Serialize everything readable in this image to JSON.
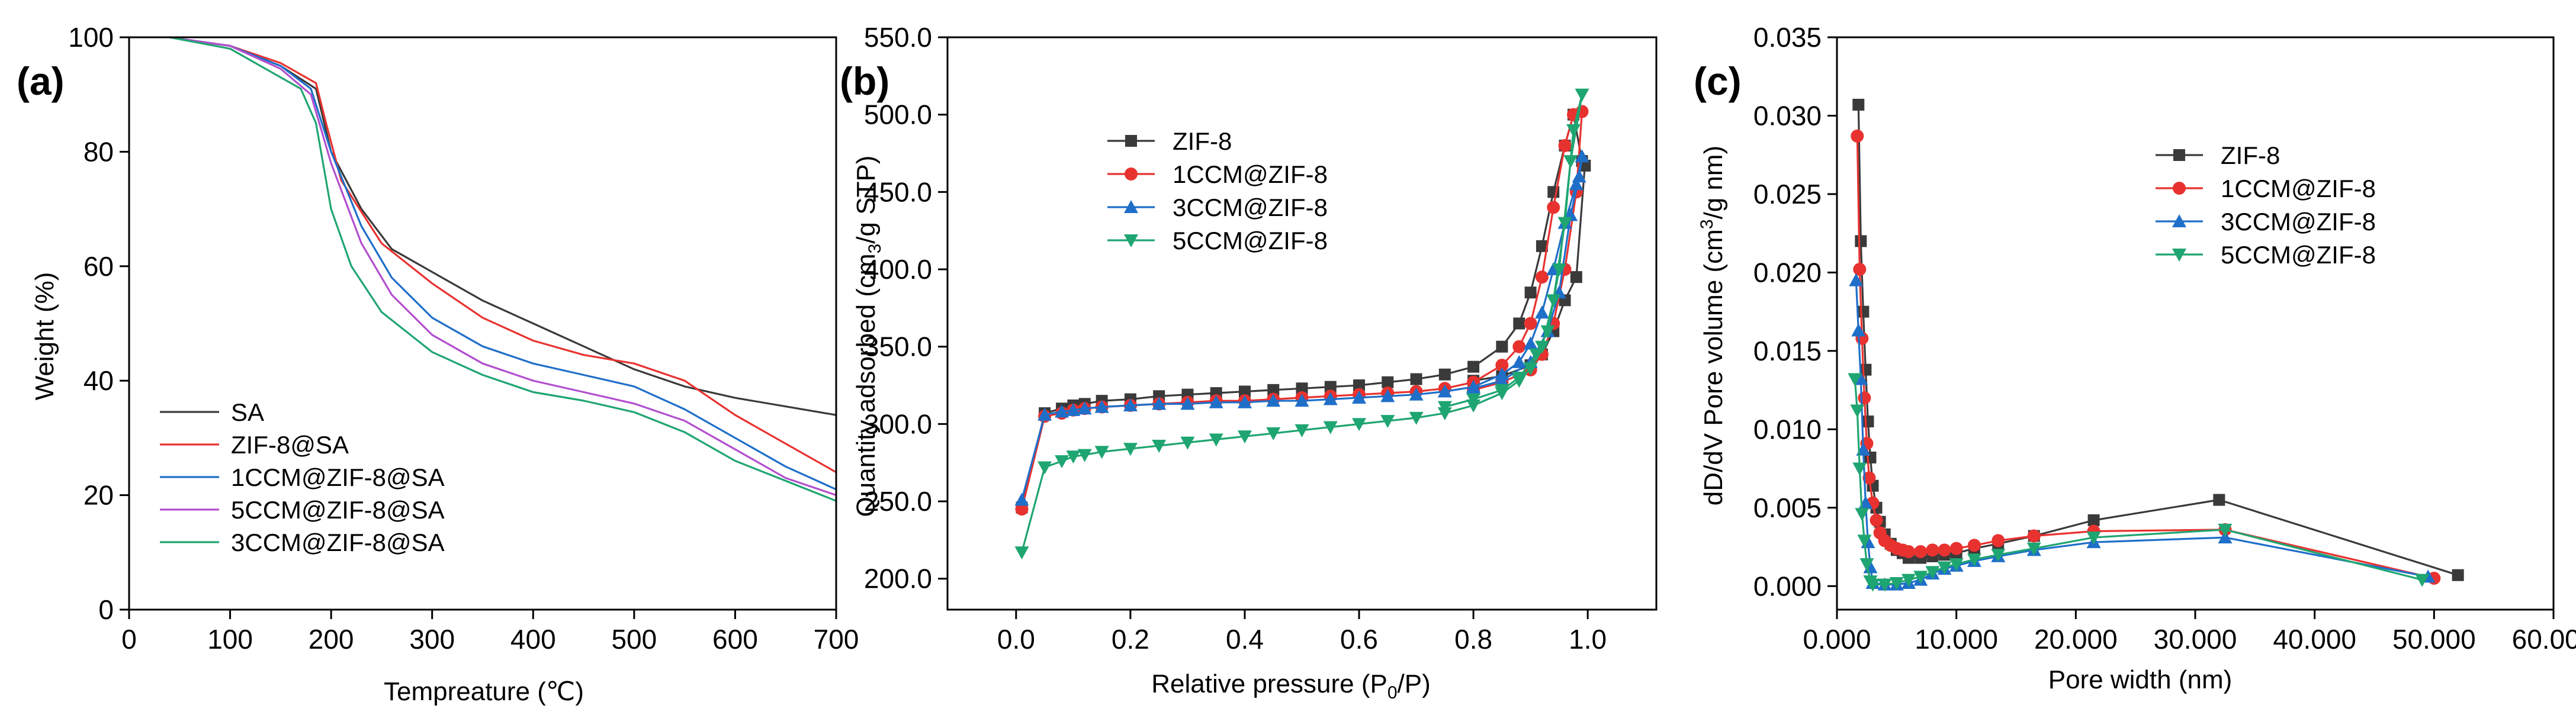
{
  "chart_data": [
    {
      "type": "line",
      "panel_label": "(a)",
      "title": "",
      "xlabel": "Tempreature (℃)",
      "ylabel": "Weight (%)",
      "xlim": [
        0,
        700
      ],
      "ylim": [
        0,
        100
      ],
      "xticks": [
        0,
        100,
        200,
        300,
        400,
        500,
        600,
        700
      ],
      "yticks": [
        0,
        20,
        40,
        60,
        80,
        100
      ],
      "legend_position": "bottom-left",
      "markers": false,
      "series": [
        {
          "name": "SA",
          "color": "#3a3a3a",
          "x": [
            40,
            100,
            150,
            185,
            200,
            230,
            260,
            300,
            350,
            400,
            450,
            500,
            550,
            600,
            650,
            700
          ],
          "y": [
            100,
            98.5,
            95,
            91,
            80,
            70,
            63,
            59,
            54,
            50,
            46,
            42,
            39,
            37,
            35.5,
            34
          ]
        },
        {
          "name": "ZIF-8@SA",
          "color": "#e8322f",
          "x": [
            40,
            100,
            150,
            185,
            195,
            210,
            250,
            300,
            350,
            400,
            450,
            500,
            550,
            600,
            650,
            700
          ],
          "y": [
            100,
            98.5,
            95.5,
            92,
            85,
            75,
            64,
            57,
            51,
            47,
            44.5,
            43,
            40,
            34,
            29,
            24
          ]
        },
        {
          "name": "1CCM@ZIF-8@SA",
          "color": "#1f6fc9",
          "x": [
            40,
            100,
            150,
            180,
            200,
            230,
            260,
            300,
            350,
            400,
            450,
            500,
            550,
            600,
            650,
            700
          ],
          "y": [
            100,
            98.5,
            95,
            91,
            80,
            67,
            58,
            51,
            46,
            43,
            41,
            39,
            35,
            30,
            25,
            21
          ]
        },
        {
          "name": "5CCM@ZIF-8@SA",
          "color": "#b24fcf",
          "x": [
            40,
            100,
            150,
            180,
            200,
            230,
            260,
            300,
            350,
            400,
            450,
            500,
            550,
            600,
            650,
            700
          ],
          "y": [
            100,
            98.5,
            94.5,
            90,
            78,
            64,
            55,
            48,
            43,
            40,
            38,
            36,
            33,
            28,
            23,
            20
          ]
        },
        {
          "name": "3CCM@ZIF-8@SA",
          "color": "#1fa571",
          "x": [
            40,
            100,
            140,
            170,
            185,
            200,
            220,
            250,
            300,
            350,
            400,
            450,
            500,
            550,
            600,
            650,
            700
          ],
          "y": [
            100,
            98,
            94,
            91,
            85,
            70,
            60,
            52,
            45,
            41,
            38,
            36.5,
            34.5,
            31,
            26,
            22.5,
            19
          ]
        }
      ]
    },
    {
      "type": "line",
      "panel_label": "(b)",
      "title": "",
      "xlabel": "Relative pressure (P0/P)",
      "ylabel": "Quantity adsorbed (cm3/g STP)",
      "xlim": [
        -0.12,
        1.12
      ],
      "ylim": [
        180,
        550
      ],
      "xticks": [
        0.0,
        0.2,
        0.4,
        0.6,
        0.8,
        1.0
      ],
      "yticks": [
        200,
        250,
        300,
        350,
        400,
        450,
        500,
        550
      ],
      "legend_position": "top-left",
      "markers": true,
      "series": [
        {
          "name": "ZIF-8",
          "color": "#3a3a3a",
          "marker": "square",
          "x": [
            0.01,
            0.05,
            0.08,
            0.1,
            0.12,
            0.15,
            0.2,
            0.25,
            0.3,
            0.35,
            0.4,
            0.45,
            0.5,
            0.55,
            0.6,
            0.65,
            0.7,
            0.75,
            0.8,
            0.85,
            0.88,
            0.9,
            0.92,
            0.94,
            0.96,
            0.975,
            0.99,
            0.995,
            0.98,
            0.96,
            0.94,
            0.92,
            0.9,
            0.85,
            0.8
          ],
          "y": [
            246,
            307,
            310,
            312,
            313,
            315,
            316,
            318,
            319,
            320,
            321,
            322,
            323,
            324,
            325,
            327,
            329,
            332,
            337,
            350,
            365,
            385,
            415,
            450,
            480,
            500,
            470,
            467,
            395,
            380,
            360,
            345,
            338,
            331,
            328
          ]
        },
        {
          "name": "1CCM@ZIF-8",
          "color": "#e8322f",
          "marker": "circle",
          "x": [
            0.01,
            0.05,
            0.08,
            0.1,
            0.12,
            0.15,
            0.2,
            0.25,
            0.3,
            0.35,
            0.4,
            0.45,
            0.5,
            0.55,
            0.6,
            0.65,
            0.7,
            0.75,
            0.8,
            0.85,
            0.88,
            0.9,
            0.92,
            0.94,
            0.96,
            0.975,
            0.99,
            0.98,
            0.96,
            0.94,
            0.92,
            0.9,
            0.85,
            0.8
          ],
          "y": [
            245,
            305,
            307,
            309,
            310,
            311,
            312,
            313,
            314,
            315,
            315,
            316,
            317,
            318,
            319,
            320,
            321,
            323,
            327,
            338,
            350,
            365,
            395,
            440,
            480,
            500,
            502,
            450,
            400,
            365,
            345,
            335,
            327,
            322
          ]
        },
        {
          "name": "3CCM@ZIF-8",
          "color": "#1f6fc9",
          "marker": "triangle-up",
          "x": [
            0.01,
            0.05,
            0.08,
            0.1,
            0.12,
            0.15,
            0.2,
            0.25,
            0.3,
            0.35,
            0.4,
            0.45,
            0.5,
            0.55,
            0.6,
            0.65,
            0.7,
            0.75,
            0.8,
            0.85,
            0.88,
            0.9,
            0.92,
            0.94,
            0.96,
            0.98,
            0.99,
            0.985,
            0.97,
            0.95,
            0.93,
            0.9,
            0.85,
            0.8
          ],
          "y": [
            251,
            306,
            308,
            309,
            310,
            311,
            312,
            313,
            313,
            314,
            314,
            315,
            315,
            316,
            317,
            318,
            319,
            321,
            324,
            332,
            340,
            352,
            372,
            400,
            430,
            455,
            473,
            460,
            435,
            385,
            360,
            340,
            328,
            323
          ]
        },
        {
          "name": "5CCM@ZIF-8",
          "color": "#1fa571",
          "marker": "triangle-down",
          "x": [
            0.01,
            0.05,
            0.08,
            0.1,
            0.12,
            0.15,
            0.2,
            0.25,
            0.3,
            0.35,
            0.4,
            0.45,
            0.5,
            0.55,
            0.6,
            0.65,
            0.7,
            0.75,
            0.8,
            0.85,
            0.88,
            0.9,
            0.92,
            0.94,
            0.96,
            0.975,
            0.99,
            0.97,
            0.95,
            0.93,
            0.91,
            0.88,
            0.85,
            0.8,
            0.75
          ],
          "y": [
            217,
            272,
            276,
            279,
            280,
            282,
            284,
            286,
            288,
            290,
            292,
            294,
            296,
            298,
            300,
            302,
            304,
            307,
            312,
            320,
            328,
            336,
            350,
            380,
            430,
            490,
            513,
            470,
            400,
            360,
            345,
            330,
            322,
            316,
            311
          ]
        }
      ]
    },
    {
      "type": "line",
      "panel_label": "(c)",
      "title": "",
      "xlabel": "Pore width (nm)",
      "ylabel": "dD/dV Pore volume (cm3/g nm)",
      "xlim": [
        0,
        60
      ],
      "ylim": [
        -0.0015,
        0.035
      ],
      "xticks": [
        0,
        10,
        20,
        30,
        40,
        50,
        60
      ],
      "yticks": [
        0.0,
        0.005,
        0.01,
        0.015,
        0.02,
        0.025,
        0.03,
        0.035
      ],
      "legend_position": "top-right",
      "markers": true,
      "series": [
        {
          "name": "ZIF-8",
          "color": "#3a3a3a",
          "marker": "square",
          "x": [
            1.8,
            2.0,
            2.2,
            2.4,
            2.6,
            2.8,
            3.0,
            3.3,
            3.6,
            4.0,
            4.5,
            5.0,
            5.5,
            6.0,
            7.0,
            8.0,
            9.0,
            10.0,
            11.5,
            13.5,
            16.5,
            21.5,
            32.0,
            52.0
          ],
          "y": [
            0.0307,
            0.022,
            0.0175,
            0.0138,
            0.0105,
            0.0082,
            0.0064,
            0.005,
            0.0041,
            0.0033,
            0.0027,
            0.0023,
            0.0021,
            0.0018,
            0.0018,
            0.0019,
            0.002,
            0.0021,
            0.0024,
            0.0027,
            0.0032,
            0.0042,
            0.0055,
            0.0007
          ]
        },
        {
          "name": "1CCM@ZIF-8",
          "color": "#e8322f",
          "marker": "circle",
          "x": [
            1.7,
            1.9,
            2.1,
            2.3,
            2.5,
            2.7,
            3.0,
            3.3,
            3.6,
            4.0,
            4.5,
            5.0,
            5.5,
            6.0,
            7.0,
            8.0,
            9.0,
            10.0,
            11.5,
            13.5,
            16.5,
            21.5,
            32.5,
            50.0
          ],
          "y": [
            0.0287,
            0.0202,
            0.0158,
            0.012,
            0.0091,
            0.0069,
            0.0053,
            0.0042,
            0.0034,
            0.0029,
            0.0026,
            0.0024,
            0.0023,
            0.0022,
            0.0022,
            0.0023,
            0.0023,
            0.0024,
            0.0026,
            0.0029,
            0.0032,
            0.0035,
            0.0036,
            0.0005
          ]
        },
        {
          "name": "3CCM@ZIF-8",
          "color": "#1f6fc9",
          "marker": "triangle-up",
          "x": [
            1.6,
            1.8,
            2.0,
            2.2,
            2.4,
            2.6,
            2.8,
            3.0,
            4.0,
            5.0,
            6.0,
            7.0,
            8.0,
            9.0,
            10.0,
            11.5,
            13.5,
            16.5,
            21.5,
            32.5,
            49.5
          ],
          "y": [
            0.0195,
            0.0163,
            0.0132,
            0.0087,
            0.0053,
            0.0028,
            0.0012,
            0.0002,
            0.0001,
            0.0001,
            0.0002,
            0.0004,
            0.0008,
            0.0011,
            0.0013,
            0.0016,
            0.0019,
            0.0023,
            0.0028,
            0.0031,
            0.0006
          ]
        },
        {
          "name": "5CCM@ZIF-8",
          "color": "#1fa571",
          "marker": "triangle-down",
          "x": [
            1.5,
            1.7,
            1.9,
            2.1,
            2.3,
            2.5,
            2.8,
            3.0,
            4.0,
            5.0,
            6.0,
            7.0,
            8.0,
            9.0,
            10.0,
            11.5,
            13.5,
            16.5,
            21.5,
            32.5,
            49.0
          ],
          "y": [
            0.0132,
            0.0112,
            0.0075,
            0.0046,
            0.0029,
            0.0014,
            0.0003,
            0.0001,
            0.0001,
            0.0002,
            0.0004,
            0.0006,
            0.0009,
            0.0012,
            0.0014,
            0.0017,
            0.002,
            0.0024,
            0.0031,
            0.0036,
            0.0004
          ]
        }
      ]
    }
  ]
}
